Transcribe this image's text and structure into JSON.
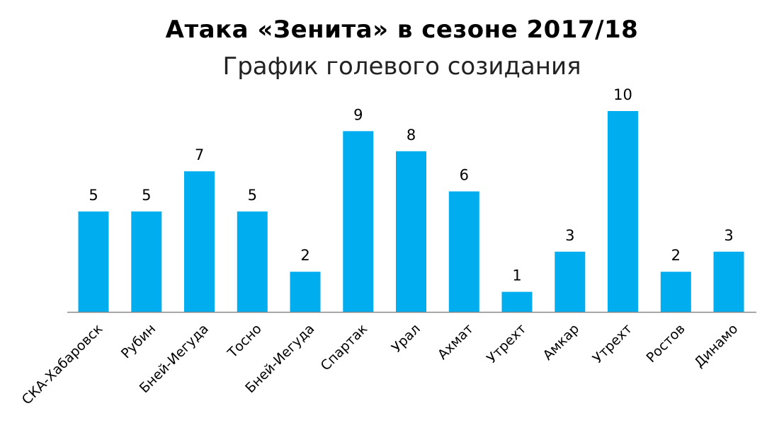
{
  "chart_data": {
    "type": "bar",
    "title": "Атака «Зенита» в сезоне 2017/18",
    "subtitle": "График голевого созидания",
    "categories": [
      "СКА-Хабаровск",
      "Рубин",
      "Бней-Иегуда",
      "Тосно",
      "Бней-Иегуда",
      "Спартак",
      "Урал",
      "Ахмат",
      "Утрехт",
      "Амкар",
      "Утрехт",
      "Ростов",
      "Динамо"
    ],
    "values": [
      5,
      5,
      7,
      5,
      2,
      9,
      8,
      6,
      1,
      3,
      10,
      2,
      3
    ],
    "data_labels": [
      "5",
      "5",
      "7",
      "5",
      "2",
      "9",
      "8",
      "6",
      "1",
      "3",
      "10",
      "2",
      "3"
    ],
    "ylim": [
      0,
      10
    ],
    "grid": false,
    "legend": "none",
    "bar_color": "#00aeef",
    "axis_color": "#888888"
  }
}
